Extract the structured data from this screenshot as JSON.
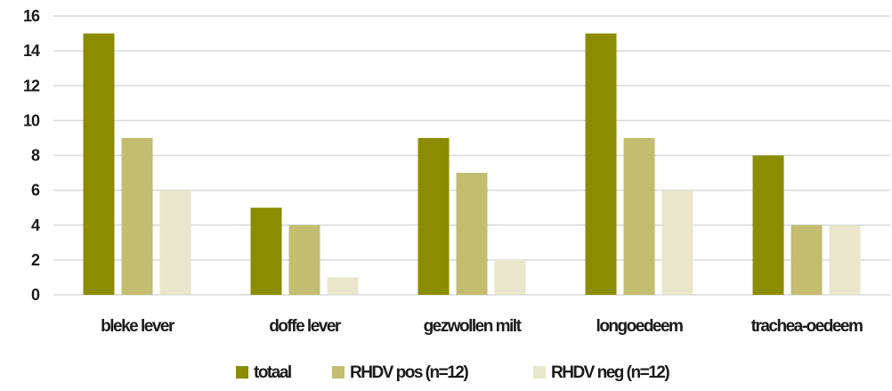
{
  "chart_data": {
    "type": "bar",
    "categories": [
      "bleke lever",
      "doffe lever",
      "gezwollen milt",
      "longoedeem",
      "trachea-oedeem"
    ],
    "series": [
      {
        "name": "totaal",
        "values": [
          15,
          5,
          9,
          15,
          8
        ],
        "color": "#8c8c00"
      },
      {
        "name": "RHDV pos (n=12)",
        "values": [
          9,
          4,
          7,
          9,
          4
        ],
        "color": "#c2bd6f"
      },
      {
        "name": "RHDV neg (n=12)",
        "values": [
          6,
          1,
          2,
          6,
          4
        ],
        "color": "#e9e6cc"
      }
    ],
    "yticks": [
      "0",
      "2",
      "4",
      "6",
      "8",
      "10",
      "12",
      "14",
      "16"
    ],
    "ylim": [
      0,
      16
    ],
    "grid": true,
    "legend_position": "bottom",
    "title": "",
    "xlabel": "",
    "ylabel": ""
  }
}
